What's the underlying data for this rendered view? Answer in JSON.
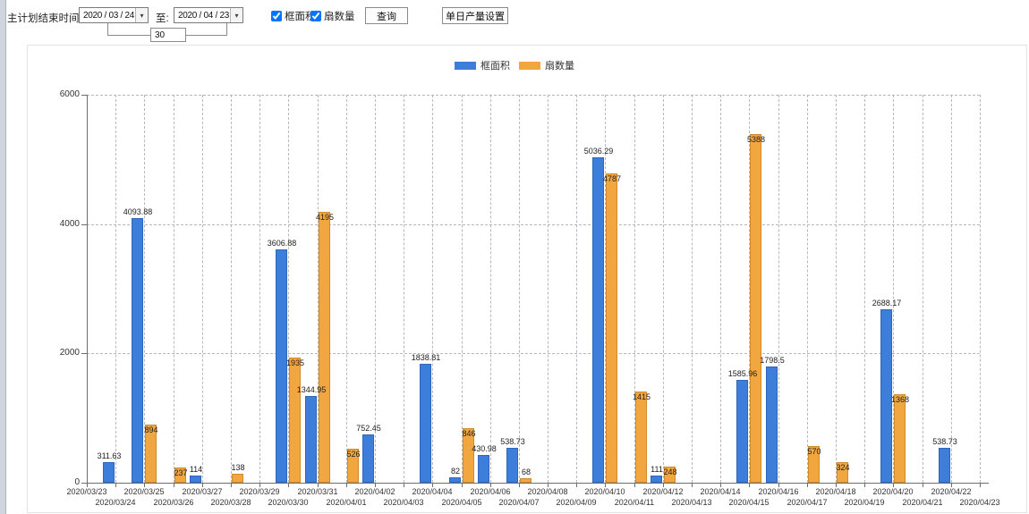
{
  "toolbar": {
    "label_end_time": "主计划结束时间:",
    "start_date": "2020 / 03 / 24",
    "to_label": "至:",
    "end_date": "2020 / 04 / 23",
    "interval_days": "30",
    "checkbox_frame_area": "框面积",
    "checkbox_fan_count": "扇数量",
    "query_button": "查询",
    "daily_output_button": "单日产量设置"
  },
  "chart_data": {
    "type": "bar",
    "title": "",
    "xlabel": "",
    "ylabel": "",
    "ylim": [
      0,
      6000
    ],
    "yticks": [
      0,
      2000,
      4000,
      6000
    ],
    "grid": true,
    "legend_position": "top",
    "categories": [
      "2020/03/23",
      "2020/03/24",
      "2020/03/25",
      "2020/03/26",
      "2020/03/27",
      "2020/03/28",
      "2020/03/29",
      "2020/03/30",
      "2020/03/31",
      "2020/04/01",
      "2020/04/02",
      "2020/04/03",
      "2020/04/04",
      "2020/04/05",
      "2020/04/06",
      "2020/04/07",
      "2020/04/08",
      "2020/04/09",
      "2020/04/10",
      "2020/04/11",
      "2020/04/12",
      "2020/04/13",
      "2020/04/14",
      "2020/04/15",
      "2020/04/16",
      "2020/04/17",
      "2020/04/18",
      "2020/04/19",
      "2020/04/20",
      "2020/04/21",
      "2020/04/22",
      "2020/04/23"
    ],
    "series": [
      {
        "name": "框面积",
        "color": "#3d7edb",
        "values": [
          null,
          311.63,
          4093.88,
          null,
          114,
          null,
          null,
          3606.88,
          1344.95,
          null,
          752.45,
          null,
          1838.81,
          82,
          430.98,
          538.73,
          null,
          null,
          5036.29,
          null,
          111,
          null,
          null,
          1585.96,
          1798.5,
          null,
          null,
          null,
          2688.17,
          null,
          538.73,
          null
        ]
      },
      {
        "name": "扇数量",
        "color": "#f2a640",
        "values": [
          null,
          null,
          894,
          237,
          null,
          138,
          null,
          1935,
          4195,
          526,
          null,
          null,
          null,
          846,
          null,
          68,
          null,
          null,
          4787,
          1415,
          248,
          null,
          null,
          5388,
          null,
          570,
          324,
          null,
          1368,
          null,
          null,
          null
        ]
      }
    ]
  }
}
